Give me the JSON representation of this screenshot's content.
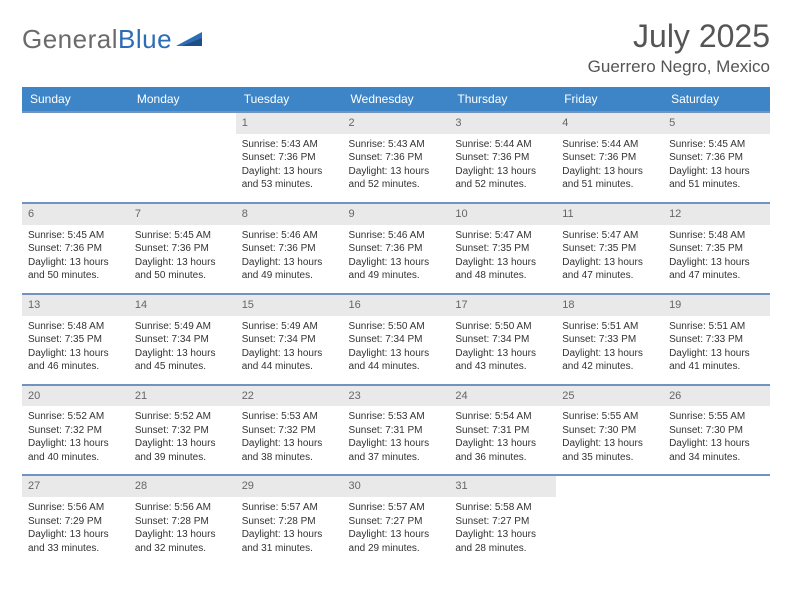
{
  "logo": {
    "word1": "General",
    "word2": "Blue"
  },
  "header": {
    "title": "July 2025",
    "location": "Guerrero Negro, Mexico"
  },
  "columns": [
    "Sunday",
    "Monday",
    "Tuesday",
    "Wednesday",
    "Thursday",
    "Friday",
    "Saturday"
  ],
  "style": {
    "header_bg": "#3d85c6",
    "header_text": "#ffffff",
    "row_border": "#7094bf",
    "daynum_bg": "#e9e9e9",
    "daynum_text": "#666666",
    "body_text": "#333333",
    "title_color": "#555555",
    "logo_gray": "#6b6b6b",
    "logo_blue": "#2d6db3",
    "page_bg": "#ffffff",
    "font_family": "Arial, Helvetica, sans-serif",
    "daynum_fontsize": 11,
    "body_fontsize": 10,
    "header_fontsize": 12,
    "title_fontsize": 32,
    "location_fontsize": 17
  },
  "weeks": [
    [
      {
        "n": "",
        "lines": []
      },
      {
        "n": "",
        "lines": []
      },
      {
        "n": "1",
        "lines": [
          "Sunrise: 5:43 AM",
          "Sunset: 7:36 PM",
          "Daylight: 13 hours",
          "and 53 minutes."
        ]
      },
      {
        "n": "2",
        "lines": [
          "Sunrise: 5:43 AM",
          "Sunset: 7:36 PM",
          "Daylight: 13 hours",
          "and 52 minutes."
        ]
      },
      {
        "n": "3",
        "lines": [
          "Sunrise: 5:44 AM",
          "Sunset: 7:36 PM",
          "Daylight: 13 hours",
          "and 52 minutes."
        ]
      },
      {
        "n": "4",
        "lines": [
          "Sunrise: 5:44 AM",
          "Sunset: 7:36 PM",
          "Daylight: 13 hours",
          "and 51 minutes."
        ]
      },
      {
        "n": "5",
        "lines": [
          "Sunrise: 5:45 AM",
          "Sunset: 7:36 PM",
          "Daylight: 13 hours",
          "and 51 minutes."
        ]
      }
    ],
    [
      {
        "n": "6",
        "lines": [
          "Sunrise: 5:45 AM",
          "Sunset: 7:36 PM",
          "Daylight: 13 hours",
          "and 50 minutes."
        ]
      },
      {
        "n": "7",
        "lines": [
          "Sunrise: 5:45 AM",
          "Sunset: 7:36 PM",
          "Daylight: 13 hours",
          "and 50 minutes."
        ]
      },
      {
        "n": "8",
        "lines": [
          "Sunrise: 5:46 AM",
          "Sunset: 7:36 PM",
          "Daylight: 13 hours",
          "and 49 minutes."
        ]
      },
      {
        "n": "9",
        "lines": [
          "Sunrise: 5:46 AM",
          "Sunset: 7:36 PM",
          "Daylight: 13 hours",
          "and 49 minutes."
        ]
      },
      {
        "n": "10",
        "lines": [
          "Sunrise: 5:47 AM",
          "Sunset: 7:35 PM",
          "Daylight: 13 hours",
          "and 48 minutes."
        ]
      },
      {
        "n": "11",
        "lines": [
          "Sunrise: 5:47 AM",
          "Sunset: 7:35 PM",
          "Daylight: 13 hours",
          "and 47 minutes."
        ]
      },
      {
        "n": "12",
        "lines": [
          "Sunrise: 5:48 AM",
          "Sunset: 7:35 PM",
          "Daylight: 13 hours",
          "and 47 minutes."
        ]
      }
    ],
    [
      {
        "n": "13",
        "lines": [
          "Sunrise: 5:48 AM",
          "Sunset: 7:35 PM",
          "Daylight: 13 hours",
          "and 46 minutes."
        ]
      },
      {
        "n": "14",
        "lines": [
          "Sunrise: 5:49 AM",
          "Sunset: 7:34 PM",
          "Daylight: 13 hours",
          "and 45 minutes."
        ]
      },
      {
        "n": "15",
        "lines": [
          "Sunrise: 5:49 AM",
          "Sunset: 7:34 PM",
          "Daylight: 13 hours",
          "and 44 minutes."
        ]
      },
      {
        "n": "16",
        "lines": [
          "Sunrise: 5:50 AM",
          "Sunset: 7:34 PM",
          "Daylight: 13 hours",
          "and 44 minutes."
        ]
      },
      {
        "n": "17",
        "lines": [
          "Sunrise: 5:50 AM",
          "Sunset: 7:34 PM",
          "Daylight: 13 hours",
          "and 43 minutes."
        ]
      },
      {
        "n": "18",
        "lines": [
          "Sunrise: 5:51 AM",
          "Sunset: 7:33 PM",
          "Daylight: 13 hours",
          "and 42 minutes."
        ]
      },
      {
        "n": "19",
        "lines": [
          "Sunrise: 5:51 AM",
          "Sunset: 7:33 PM",
          "Daylight: 13 hours",
          "and 41 minutes."
        ]
      }
    ],
    [
      {
        "n": "20",
        "lines": [
          "Sunrise: 5:52 AM",
          "Sunset: 7:32 PM",
          "Daylight: 13 hours",
          "and 40 minutes."
        ]
      },
      {
        "n": "21",
        "lines": [
          "Sunrise: 5:52 AM",
          "Sunset: 7:32 PM",
          "Daylight: 13 hours",
          "and 39 minutes."
        ]
      },
      {
        "n": "22",
        "lines": [
          "Sunrise: 5:53 AM",
          "Sunset: 7:32 PM",
          "Daylight: 13 hours",
          "and 38 minutes."
        ]
      },
      {
        "n": "23",
        "lines": [
          "Sunrise: 5:53 AM",
          "Sunset: 7:31 PM",
          "Daylight: 13 hours",
          "and 37 minutes."
        ]
      },
      {
        "n": "24",
        "lines": [
          "Sunrise: 5:54 AM",
          "Sunset: 7:31 PM",
          "Daylight: 13 hours",
          "and 36 minutes."
        ]
      },
      {
        "n": "25",
        "lines": [
          "Sunrise: 5:55 AM",
          "Sunset: 7:30 PM",
          "Daylight: 13 hours",
          "and 35 minutes."
        ]
      },
      {
        "n": "26",
        "lines": [
          "Sunrise: 5:55 AM",
          "Sunset: 7:30 PM",
          "Daylight: 13 hours",
          "and 34 minutes."
        ]
      }
    ],
    [
      {
        "n": "27",
        "lines": [
          "Sunrise: 5:56 AM",
          "Sunset: 7:29 PM",
          "Daylight: 13 hours",
          "and 33 minutes."
        ]
      },
      {
        "n": "28",
        "lines": [
          "Sunrise: 5:56 AM",
          "Sunset: 7:28 PM",
          "Daylight: 13 hours",
          "and 32 minutes."
        ]
      },
      {
        "n": "29",
        "lines": [
          "Sunrise: 5:57 AM",
          "Sunset: 7:28 PM",
          "Daylight: 13 hours",
          "and 31 minutes."
        ]
      },
      {
        "n": "30",
        "lines": [
          "Sunrise: 5:57 AM",
          "Sunset: 7:27 PM",
          "Daylight: 13 hours",
          "and 29 minutes."
        ]
      },
      {
        "n": "31",
        "lines": [
          "Sunrise: 5:58 AM",
          "Sunset: 7:27 PM",
          "Daylight: 13 hours",
          "and 28 minutes."
        ]
      },
      {
        "n": "",
        "lines": []
      },
      {
        "n": "",
        "lines": []
      }
    ]
  ]
}
